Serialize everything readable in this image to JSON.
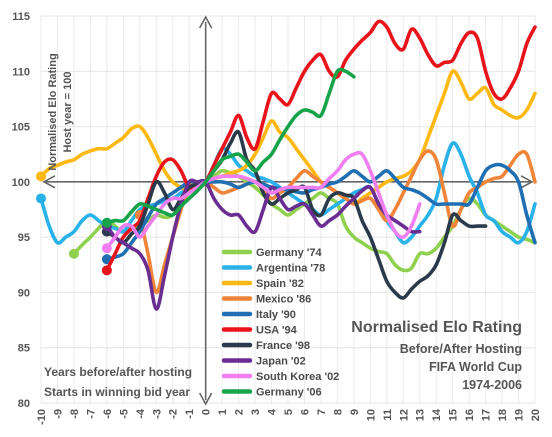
{
  "chart_data": {
    "type": "line",
    "title": "Normalised Elo Rating",
    "subtitle_lines": [
      "Before/After Hosting",
      "FIFA World Cup",
      "1974-2006"
    ],
    "ylabel_lines": [
      "Normalised Elo Rating",
      "Host year = 100"
    ],
    "note_lines": [
      "Years before/after hosting",
      "Starts in winning bid year"
    ],
    "xlim": [
      -10,
      20
    ],
    "ylim": [
      80,
      115
    ],
    "x_ticks": [
      "-10",
      "-9",
      "-8",
      "-7",
      "-6",
      "-5",
      "-4",
      "-3",
      "-2",
      "-1",
      "0",
      "1",
      "2",
      "3",
      "4",
      "5",
      "6",
      "7",
      "8",
      "9",
      "10",
      "11",
      "12",
      "13",
      "14",
      "15",
      "16",
      "17",
      "18",
      "19",
      "20"
    ],
    "y_ticks": [
      "80",
      "85",
      "90",
      "95",
      "100",
      "105",
      "110",
      "115"
    ],
    "grid": true,
    "legend_position": "center-bottom",
    "series": [
      {
        "name": "Germany '74",
        "color": "#8fd14f",
        "x": [
          -8,
          -7.5,
          -7,
          -6.5,
          -6,
          -5.5,
          -5,
          -4.5,
          -4,
          -3.5,
          -3,
          -2.5,
          -2,
          -1.5,
          -1,
          -0.5,
          0,
          0.5,
          1,
          1.5,
          2,
          2.5,
          3,
          3.5,
          4,
          4.5,
          5,
          5.5,
          6,
          6.5,
          7,
          7.5,
          8,
          8.5,
          9,
          9.5,
          10,
          10.5,
          11,
          11.5,
          12,
          12.5,
          13,
          13.5,
          14,
          14.5,
          15,
          15.5,
          16,
          16.5,
          17,
          17.5,
          18,
          18.5,
          19,
          19.5,
          20
        ],
        "y": [
          93.5,
          94.3,
          95,
          95.8,
          96.5,
          96,
          95.5,
          95.8,
          96,
          96.5,
          97,
          96.8,
          97,
          98,
          99,
          99.5,
          100,
          100.5,
          101,
          100.8,
          100.5,
          100,
          99.5,
          98.8,
          98,
          97.5,
          97,
          97.5,
          98,
          98.5,
          99,
          98.5,
          98,
          96,
          95,
          94.5,
          94,
          93.7,
          93.5,
          92.5,
          92,
          92.2,
          93.5,
          93.5,
          94,
          95,
          96,
          97.5,
          98.5,
          98,
          97,
          96.5,
          96,
          95.5,
          95,
          94.8,
          94.5
        ]
      },
      {
        "name": "Argentina '78",
        "color": "#29b1ea",
        "x": [
          -10,
          -9.5,
          -9,
          -8.5,
          -8,
          -7.5,
          -7,
          -6.5,
          -6,
          -5.5,
          -5,
          -4.5,
          -4,
          -3.5,
          -3,
          -2.5,
          -2,
          -1.5,
          -1,
          -0.5,
          0,
          0.5,
          1,
          1.5,
          2,
          2.5,
          3,
          3.5,
          4,
          4.5,
          5,
          5.5,
          6,
          6.5,
          7,
          7.5,
          8,
          8.5,
          9,
          9.5,
          10,
          10.5,
          11,
          11.5,
          12,
          12.5,
          13,
          13.5,
          14,
          14.5,
          15,
          15.5,
          16,
          16.5,
          17,
          17.5,
          18,
          18.5,
          19,
          19.5,
          20
        ],
        "y": [
          98.5,
          96,
          94.5,
          95,
          95.5,
          96.5,
          97,
          96.5,
          96,
          95.8,
          95.5,
          96.5,
          97.5,
          97.8,
          98,
          98.3,
          98.5,
          99,
          99.5,
          99.8,
          100,
          101.5,
          103,
          102.5,
          101.5,
          101,
          100.5,
          100.3,
          100,
          99.5,
          99,
          98.5,
          98,
          97.5,
          97,
          97.5,
          98,
          98.5,
          99,
          99.3,
          99.5,
          98,
          96.5,
          95.5,
          94.5,
          95,
          96,
          97,
          98.5,
          101.5,
          103.5,
          102.5,
          100.5,
          99,
          97,
          96.5,
          95.5,
          95,
          94.5,
          95.5,
          98
        ]
      },
      {
        "name": "Spain '82",
        "color": "#fdb813",
        "x": [
          -10,
          -9.5,
          -9,
          -8.5,
          -8,
          -7.5,
          -7,
          -6.5,
          -6,
          -5.5,
          -5,
          -4.5,
          -4,
          -3.5,
          -3,
          -2.5,
          -2,
          -1.5,
          -1,
          -0.5,
          0,
          0.5,
          1,
          1.5,
          2,
          2.5,
          3,
          3.5,
          4,
          4.5,
          5,
          5.5,
          6,
          6.5,
          7,
          7.5,
          8,
          8.5,
          9,
          9.5,
          10,
          10.5,
          11,
          11.5,
          12,
          12.5,
          13,
          13.5,
          14,
          14.5,
          15,
          15.5,
          16,
          16.5,
          17,
          17.5,
          18,
          18.5,
          19,
          19.5,
          20
        ],
        "y": [
          100.5,
          101.2,
          101.5,
          101.8,
          102,
          102.5,
          102.8,
          103,
          103,
          103.5,
          104,
          104.8,
          105,
          104,
          102.5,
          101,
          100,
          99.5,
          99.2,
          99.5,
          100,
          100.3,
          100.5,
          100.8,
          101,
          101.5,
          102.5,
          104,
          105.5,
          104.5,
          104,
          103,
          102,
          101,
          100,
          99.5,
          99,
          98.5,
          98,
          98.5,
          99,
          99.5,
          100,
          100.3,
          100.5,
          101,
          102,
          104,
          106,
          108,
          110,
          109,
          107.5,
          108,
          108.5,
          107,
          106.5,
          106,
          105.8,
          106.5,
          108
        ]
      },
      {
        "name": "Mexico '86",
        "color": "#f0853a",
        "x": [
          -4,
          -3.5,
          -3,
          -2.5,
          -2,
          -1.5,
          -1,
          -0.5,
          0,
          0.5,
          1,
          1.5,
          2,
          2.5,
          3,
          3.5,
          4,
          4.5,
          5,
          5.5,
          6,
          6.5,
          7,
          7.5,
          8,
          8.5,
          9,
          9.5,
          10,
          10.5,
          11,
          11.5,
          12,
          12.5,
          13,
          13.5,
          14,
          14.5,
          15,
          15.5,
          16,
          16.5,
          17,
          17.5,
          18,
          18.5,
          19,
          19.5,
          20
        ],
        "y": [
          97,
          93.5,
          90,
          92.5,
          95,
          97.5,
          99.5,
          99.8,
          100,
          99.5,
          99,
          99.2,
          99.5,
          99.8,
          100,
          99.3,
          98.5,
          99,
          99.5,
          100.3,
          101,
          100.5,
          100,
          99.5,
          99,
          98.5,
          98,
          98.3,
          98.5,
          97.5,
          96.5,
          97.5,
          99,
          100.5,
          102,
          102.8,
          102,
          99,
          96,
          97.5,
          99,
          99.5,
          100,
          100.3,
          100.5,
          101.5,
          102.5,
          102.5,
          100
        ]
      },
      {
        "name": "Italy '90",
        "color": "#1f6fb2",
        "x": [
          -6,
          -5.5,
          -5,
          -4.5,
          -4,
          -3.5,
          -3,
          -2.5,
          -2,
          -1.5,
          -1,
          -0.5,
          0,
          0.5,
          1,
          1.5,
          2,
          2.5,
          3,
          3.5,
          4,
          4.5,
          5,
          5.5,
          6,
          6.5,
          7,
          7.5,
          8,
          8.5,
          9,
          9.5,
          10,
          10.5,
          11,
          11.5,
          12,
          12.5,
          13,
          13.5,
          14,
          14.5,
          15,
          15.5,
          16,
          16.5,
          17,
          17.5,
          18,
          18.5,
          19,
          19.5,
          20
        ],
        "y": [
          93,
          93.2,
          93.5,
          94.5,
          95.5,
          96.8,
          98,
          98.5,
          99,
          99.5,
          100,
          100,
          100,
          100,
          100,
          99.8,
          99.5,
          99.8,
          100,
          99.8,
          99.5,
          99.4,
          99.3,
          99.1,
          99,
          99.3,
          99.5,
          99.8,
          100,
          100.5,
          101,
          100.5,
          100,
          100.5,
          101,
          100.3,
          99.5,
          99.3,
          99,
          98.5,
          98,
          98,
          98,
          98,
          98,
          99.5,
          101,
          101.5,
          101.5,
          101,
          100,
          97,
          94.5
        ]
      },
      {
        "name": "USA '94",
        "color": "#e8131b",
        "x": [
          -6,
          -5.5,
          -5,
          -4.5,
          -4,
          -3.5,
          -3,
          -2.5,
          -2,
          -1.5,
          -1,
          -0.5,
          0,
          0.5,
          1,
          1.5,
          2,
          2.5,
          3,
          3.5,
          4,
          4.5,
          5,
          5.5,
          6,
          6.5,
          7,
          7.5,
          8,
          8.5,
          9,
          9.5,
          10,
          10.5,
          11,
          11.5,
          12,
          12.5,
          13,
          13.5,
          14,
          14.5,
          15,
          15.5,
          16,
          16.5,
          17,
          17.5,
          18,
          18.5,
          19,
          19.5,
          20
        ],
        "y": [
          92,
          93.5,
          95,
          95.8,
          96.5,
          98.5,
          100.5,
          101.8,
          102,
          101,
          99.5,
          99.7,
          100,
          101.5,
          103,
          104.5,
          106,
          104,
          103,
          105.5,
          108,
          107.5,
          107,
          108.5,
          110,
          111,
          111.5,
          110,
          109.5,
          111,
          112,
          112.8,
          113.5,
          114.5,
          114,
          112.5,
          112,
          113.8,
          113,
          111.5,
          110.5,
          110.8,
          111,
          112.5,
          113.5,
          113,
          110,
          108,
          107.5,
          108.5,
          110,
          112.5,
          114
        ]
      },
      {
        "name": "France '98",
        "color": "#2b3a4a",
        "x": [
          -6,
          -5.5,
          -5,
          -4.5,
          -4,
          -3.5,
          -3,
          -2.5,
          -2,
          -1.5,
          -1,
          -0.5,
          0,
          0.5,
          1,
          1.5,
          2,
          2.5,
          3,
          3.5,
          4,
          4.5,
          5,
          5.5,
          6,
          6.5,
          7,
          7.5,
          8,
          8.5,
          9,
          9.5,
          10,
          10.5,
          11,
          11.5,
          12,
          12.5,
          13,
          13.5,
          14,
          14.5,
          15,
          15.5,
          16,
          16.5,
          17
        ],
        "y": [
          95.5,
          95,
          94.5,
          95.3,
          96,
          98,
          100,
          99,
          97.5,
          98.5,
          99.5,
          99.8,
          100,
          101,
          102,
          103.5,
          104.5,
          102,
          101,
          99,
          98,
          98.5,
          99,
          99.3,
          99.5,
          97.5,
          97,
          98.5,
          99,
          98.8,
          98.5,
          96.5,
          95,
          93,
          91,
          90,
          89.5,
          90.3,
          91,
          91.5,
          92.5,
          94.5,
          97,
          96.5,
          96,
          96,
          96
        ]
      },
      {
        "name": "Japan '02",
        "color": "#6a2d91",
        "x": [
          -6,
          -5.5,
          -5,
          -4.5,
          -4,
          -3.5,
          -3,
          -2.5,
          -2,
          -1.5,
          -1,
          -0.5,
          0,
          0.5,
          1,
          1.5,
          2,
          2.5,
          3,
          3.5,
          4,
          4.5,
          5,
          5.5,
          6,
          6.5,
          7,
          7.5,
          8,
          8.5,
          9,
          9.5,
          10,
          10.5,
          11,
          11.5,
          12,
          12.5,
          13
        ],
        "y": [
          96,
          95,
          94.5,
          94,
          93.5,
          92,
          88.5,
          91.5,
          95,
          98,
          100,
          100,
          100,
          98.5,
          97.5,
          97,
          97,
          96,
          95.5,
          97.5,
          99.5,
          98.5,
          97.5,
          97.8,
          98,
          97,
          96,
          96.5,
          97,
          97.8,
          98.5,
          99.2,
          99.5,
          98,
          97,
          96.5,
          96,
          95.5,
          95.5
        ]
      },
      {
        "name": "South Korea '02",
        "color": "#f07ef0",
        "x": [
          -6,
          -5.5,
          -5,
          -4.5,
          -4,
          -3.5,
          -3,
          -2.5,
          -2,
          -1.5,
          -1,
          -0.5,
          0,
          0.5,
          1,
          1.5,
          2,
          2.5,
          3,
          3.5,
          4,
          4.5,
          5,
          5.5,
          6,
          6.5,
          7,
          7.5,
          8,
          8.5,
          9,
          9.5,
          10,
          10.5,
          11,
          11.5,
          12,
          12.5,
          13
        ],
        "y": [
          94,
          95,
          96,
          96,
          95,
          96,
          97,
          98,
          98.5,
          98.5,
          99,
          99.5,
          100,
          100.3,
          100.5,
          100.5,
          100.5,
          100.3,
          100,
          99.5,
          99,
          99.3,
          99.5,
          99.5,
          99.5,
          99.5,
          99.5,
          100.3,
          101,
          102,
          102.5,
          102.5,
          101,
          99,
          97,
          95.5,
          95,
          96,
          98
        ]
      },
      {
        "name": "Germany '06",
        "color": "#16a34a",
        "x": [
          -6,
          -5.5,
          -5,
          -4.5,
          -4,
          -3.5,
          -3,
          -2.5,
          -2,
          -1.5,
          -1,
          -0.5,
          0,
          0.5,
          1,
          1.5,
          2,
          2.5,
          3,
          3.5,
          4,
          4.5,
          5,
          5.5,
          6,
          6.5,
          7,
          7.5,
          8,
          8.5,
          9
        ],
        "y": [
          96.3,
          96.5,
          96.5,
          97.3,
          98,
          97.8,
          97.5,
          97.2,
          97,
          97.8,
          98.5,
          99.2,
          100,
          101,
          102,
          102.3,
          102.5,
          101.8,
          101,
          101.8,
          102.5,
          103.8,
          105,
          106,
          106.5,
          106.3,
          106,
          108,
          110,
          110,
          109.5
        ]
      }
    ]
  }
}
